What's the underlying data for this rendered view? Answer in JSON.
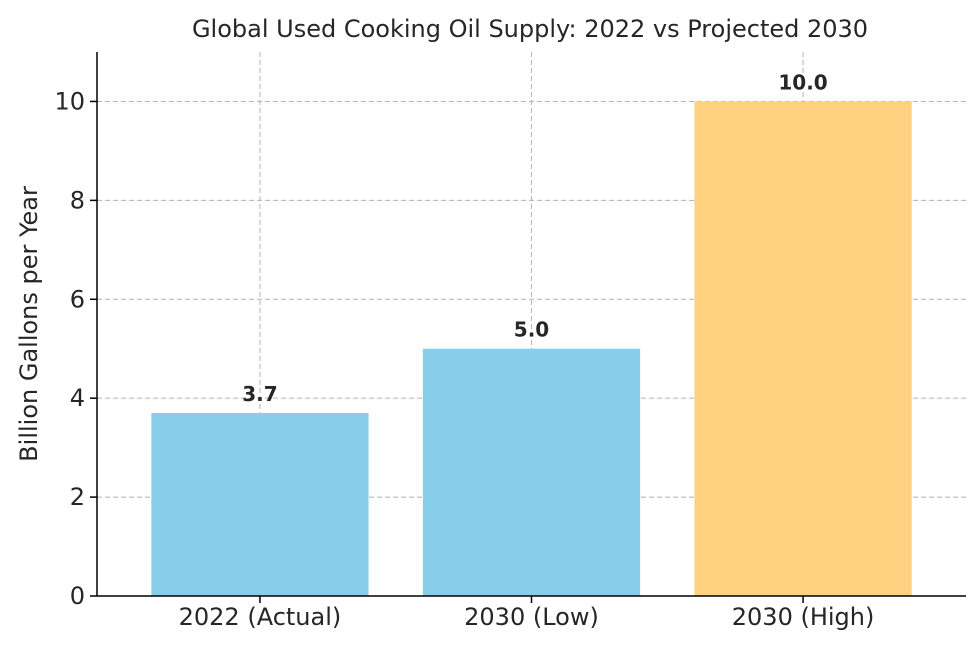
{
  "chart_data": {
    "type": "bar",
    "title": "Global Used Cooking Oil Supply: 2022 vs Projected 2030",
    "xlabel": "",
    "ylabel": "Billion Gallons per Year",
    "categories": [
      "2022 (Actual)",
      "2030 (Low)",
      "2030 (High)"
    ],
    "values": [
      3.7,
      5.0,
      10.0
    ],
    "data_labels": [
      "3.7",
      "5.0",
      "10.0"
    ],
    "colors": [
      "#87ceeb",
      "#87ceeb",
      "#ffd080"
    ],
    "ylim": [
      0,
      11
    ],
    "yticks": [
      0,
      2,
      4,
      6,
      8,
      10
    ],
    "grid": true,
    "legend": "none"
  }
}
